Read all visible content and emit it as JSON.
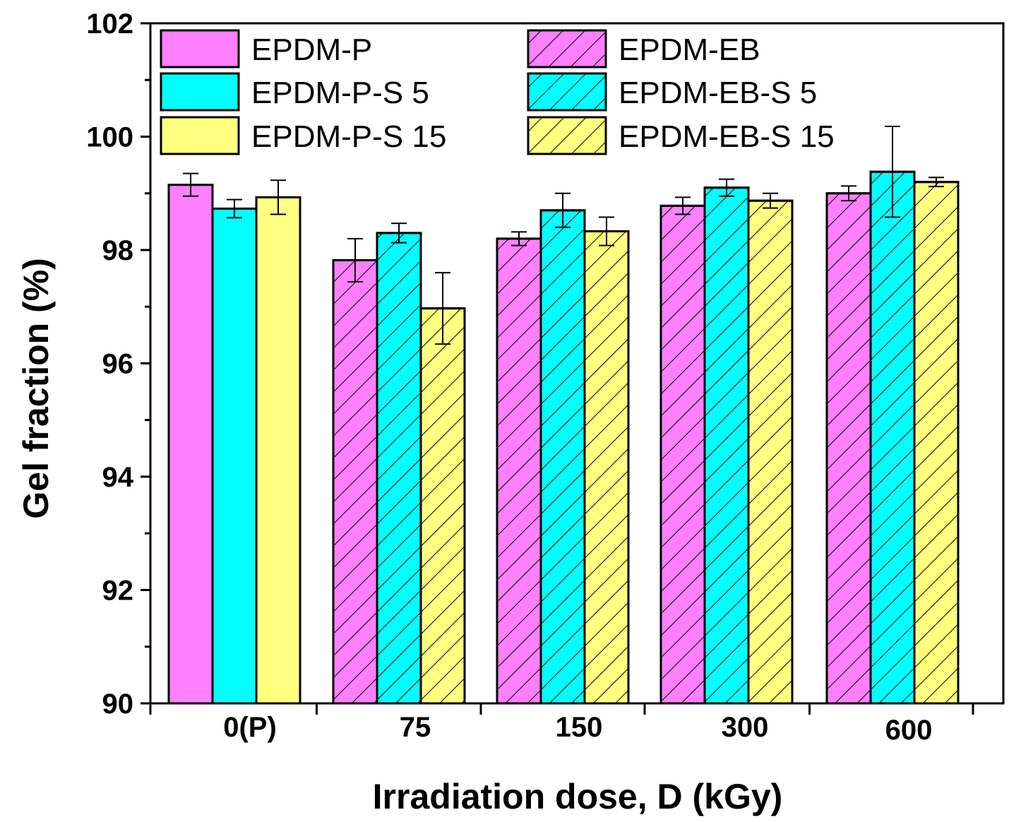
{
  "chart_data": {
    "type": "bar",
    "title": "",
    "xlabel": "Irradiation dose, D (kGy)",
    "ylabel": "Gel fraction (%)",
    "ylim": [
      90,
      102
    ],
    "yticks": [
      "90",
      "92",
      "94",
      "96",
      "98",
      "100",
      "102"
    ],
    "categories": [
      "0(P)",
      "75",
      "150",
      "300",
      "600"
    ],
    "legend_position": "top",
    "series": [
      {
        "name": "EPDM-P",
        "color": "#ff80ff",
        "hatch": false,
        "values": [
          99.15,
          null,
          null,
          null,
          null
        ],
        "errors": [
          0.2,
          null,
          null,
          null,
          null
        ]
      },
      {
        "name": "EPDM-EB",
        "color": "#ff80ff",
        "hatch": true,
        "values": [
          null,
          97.82,
          98.2,
          98.78,
          99.0
        ],
        "errors": [
          null,
          0.38,
          0.12,
          0.15,
          0.13
        ]
      },
      {
        "name": "EPDM-P-S 5",
        "color": "#00ffff",
        "hatch": false,
        "values": [
          98.73,
          null,
          null,
          null,
          null
        ],
        "errors": [
          0.16,
          null,
          null,
          null,
          null
        ]
      },
      {
        "name": "EPDM-EB-S 5",
        "color": "#00ffff",
        "hatch": true,
        "values": [
          null,
          98.3,
          98.7,
          99.1,
          99.38
        ],
        "errors": [
          null,
          0.17,
          0.3,
          0.15,
          0.8
        ]
      },
      {
        "name": "EPDM-P-S 15",
        "color": "#ffff80",
        "hatch": false,
        "values": [
          98.93,
          null,
          null,
          null,
          null
        ],
        "errors": [
          0.3,
          null,
          null,
          null,
          null
        ]
      },
      {
        "name": "EPDM-EB-S 15",
        "color": "#ffff80",
        "hatch": true,
        "values": [
          null,
          96.97,
          98.33,
          98.87,
          99.2
        ],
        "errors": [
          null,
          0.63,
          0.25,
          0.13,
          0.08
        ]
      }
    ],
    "groups": [
      {
        "category": "0(P)",
        "bars": [
          0,
          2,
          4
        ]
      },
      {
        "category": "75",
        "bars": [
          1,
          3,
          5
        ]
      },
      {
        "category": "150",
        "bars": [
          1,
          3,
          5
        ]
      },
      {
        "category": "300",
        "bars": [
          1,
          3,
          5
        ]
      },
      {
        "category": "600",
        "bars": [
          1,
          3,
          5
        ]
      }
    ]
  }
}
